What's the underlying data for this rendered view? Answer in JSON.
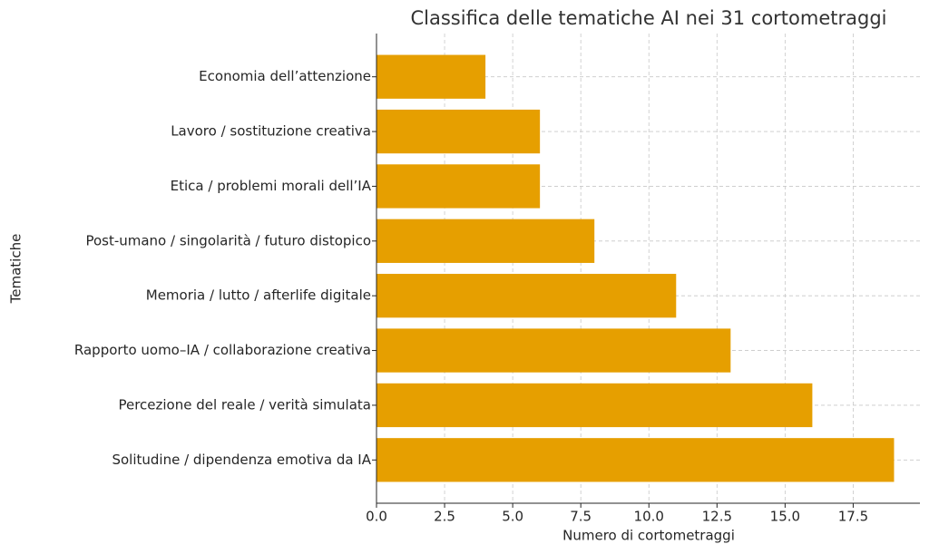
{
  "chart_data": {
    "type": "barh",
    "title": "Classifica delle tematiche AI nei 31 cortometraggi",
    "xlabel": "Numero di cortometraggi",
    "ylabel": "Tematiche",
    "categories": [
      "Solitudine / dipendenza emotiva da IA",
      "Percezione del reale / verità simulata",
      "Rapporto uomo–IA / collaborazione creativa",
      "Memoria / lutto / afterlife digitale",
      "Post-umano / singolarità / futuro distopico",
      "Etica / problemi morali dell’IA",
      "Lavoro / sostituzione creativa",
      "Economia dell’attenzione"
    ],
    "values": [
      19,
      16,
      13,
      11,
      8,
      6,
      6,
      4
    ],
    "color": "#e69f00",
    "xlim": [
      0,
      19.95
    ],
    "xticks": [
      {
        "value": 0,
        "label": "0.0"
      },
      2.5,
      {
        "value": 5,
        "label": "5.0"
      },
      7.5,
      {
        "value": 10,
        "label": "10.0"
      },
      12.5,
      {
        "value": 15,
        "label": "15.0"
      },
      17.5
    ],
    "grid": true
  }
}
